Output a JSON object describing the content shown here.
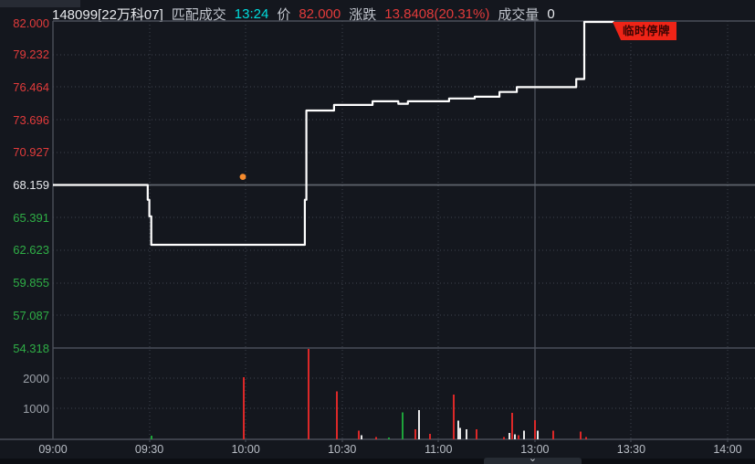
{
  "header": {
    "symbol": "148099[22万科07]",
    "matched_label": "匹配成交",
    "matched_time": "13:24",
    "price_label": "价",
    "price": "82.000",
    "change_label": "涨跌",
    "change": "13.8408(20.31%)",
    "volume_label": "成交量",
    "volume": "0"
  },
  "suspension_tag_label": "临时停牌",
  "bottom_handle_icon": "⌄",
  "colors": {
    "bg": "#14171e",
    "white_text": "#e8eaee",
    "gray_text": "#c0c4cc",
    "red_text": "#e23b3b",
    "green_text": "#2fae46",
    "cyan_text": "#00dede",
    "vol_axis_text": "#9ba0a8",
    "time_text": "#b9bec6",
    "grid": "#3e434e",
    "frame": "#4a4f59",
    "prev_close_line": "#5f646d",
    "price_line": "#ffffff",
    "bar_red": "#dc2828",
    "bar_green": "#1ea33a",
    "bar_white": "#e9e9e9",
    "tag_bg": "#ee2417",
    "tag_text": "#3a0503",
    "marker_dot": "#f68b2d"
  },
  "chart_data": {
    "type": "line",
    "symbol": "148099",
    "name": "22万科07",
    "prev_close": 68.159,
    "last_price": 82.0,
    "change": "13.8408(20.31%)",
    "suspended_at": "13:24",
    "y_axis": {
      "min": 54.318,
      "max": 82.0,
      "labels": [
        {
          "value": "82.000",
          "color": "red_text",
          "grid": "frame"
        },
        {
          "value": "79.232",
          "color": "red_text",
          "grid": "dotted"
        },
        {
          "value": "76.464",
          "color": "red_text",
          "grid": "dotted"
        },
        {
          "value": "73.696",
          "color": "red_text",
          "grid": "dotted"
        },
        {
          "value": "70.927",
          "color": "red_text",
          "grid": "dotted"
        },
        {
          "value": "68.159",
          "color": "white_text",
          "grid": "prev"
        },
        {
          "value": "65.391",
          "color": "green_text",
          "grid": "dotted"
        },
        {
          "value": "62.623",
          "color": "green_text",
          "grid": "dotted"
        },
        {
          "value": "59.855",
          "color": "green_text",
          "grid": "dotted"
        },
        {
          "value": "57.087",
          "color": "green_text",
          "grid": "dotted"
        },
        {
          "value": "54.318",
          "color": "green_text",
          "grid": "frame"
        }
      ]
    },
    "volume_axis": {
      "max": 3000,
      "labels": [
        2000,
        1000
      ]
    },
    "x_axis": {
      "labels": [
        "09:00",
        "09:30",
        "10:00",
        "10:30",
        "11:00",
        "13:00",
        "13:30",
        "14:00"
      ],
      "tick_minutes": [
        0,
        30,
        60,
        90,
        120,
        150,
        180,
        210
      ],
      "session_divider_minute": 150
    },
    "series": [
      {
        "name": "price",
        "points": [
          [
            0,
            68.159
          ],
          [
            29.5,
            68.159
          ],
          [
            29.5,
            66.9
          ],
          [
            30,
            66.9
          ],
          [
            30,
            65.5
          ],
          [
            30.6,
            65.5
          ],
          [
            30.6,
            63.08
          ],
          [
            78.4,
            63.08
          ],
          [
            78.4,
            66.9
          ],
          [
            78.9,
            66.9
          ],
          [
            78.9,
            74.48
          ],
          [
            87.5,
            74.48
          ],
          [
            87.5,
            74.95
          ],
          [
            99.5,
            74.95
          ],
          [
            99.5,
            75.26
          ],
          [
            107.5,
            75.26
          ],
          [
            107.5,
            75.05
          ],
          [
            110.5,
            75.05
          ],
          [
            110.5,
            75.26
          ],
          [
            123.3,
            75.26
          ],
          [
            123.3,
            75.5
          ],
          [
            131.3,
            75.5
          ],
          [
            131.3,
            75.65
          ],
          [
            139,
            75.65
          ],
          [
            139,
            76.05
          ],
          [
            144.4,
            76.05
          ],
          [
            144.4,
            76.464
          ],
          [
            162.9,
            76.464
          ],
          [
            162.9,
            77.15
          ],
          [
            165.4,
            77.15
          ],
          [
            165.4,
            82.0
          ],
          [
            174.6,
            82.0
          ]
        ]
      }
    ],
    "volume_bars": [
      [
        30.7,
        120,
        "g"
      ],
      [
        59.4,
        2030,
        "r"
      ],
      [
        79.6,
        2960,
        "r"
      ],
      [
        88.4,
        1560,
        "r"
      ],
      [
        95.2,
        280,
        "r"
      ],
      [
        96.3,
        130,
        "w"
      ],
      [
        100.6,
        80,
        "r"
      ],
      [
        104.6,
        60,
        "g"
      ],
      [
        109.1,
        875,
        "g"
      ],
      [
        113.1,
        330,
        "r"
      ],
      [
        114.2,
        955,
        "w"
      ],
      [
        117.6,
        180,
        "r"
      ],
      [
        125,
        1470,
        "r"
      ],
      [
        126.2,
        610,
        "w"
      ],
      [
        127,
        380,
        "w"
      ],
      [
        129,
        330,
        "w"
      ],
      [
        132.1,
        330,
        "r"
      ],
      [
        140.4,
        80,
        "r"
      ],
      [
        142.1,
        210,
        "w"
      ],
      [
        143.2,
        860,
        "r"
      ],
      [
        143.8,
        170,
        "w"
      ],
      [
        145.2,
        140,
        "r"
      ],
      [
        146.9,
        290,
        "w"
      ],
      [
        150.3,
        630,
        "r"
      ],
      [
        150.9,
        280,
        "w"
      ],
      [
        156,
        280,
        "r"
      ],
      [
        164.3,
        260,
        "r"
      ],
      [
        166.2,
        80,
        "r"
      ]
    ],
    "marker": {
      "minute": 59.1,
      "price": 68.85
    }
  }
}
